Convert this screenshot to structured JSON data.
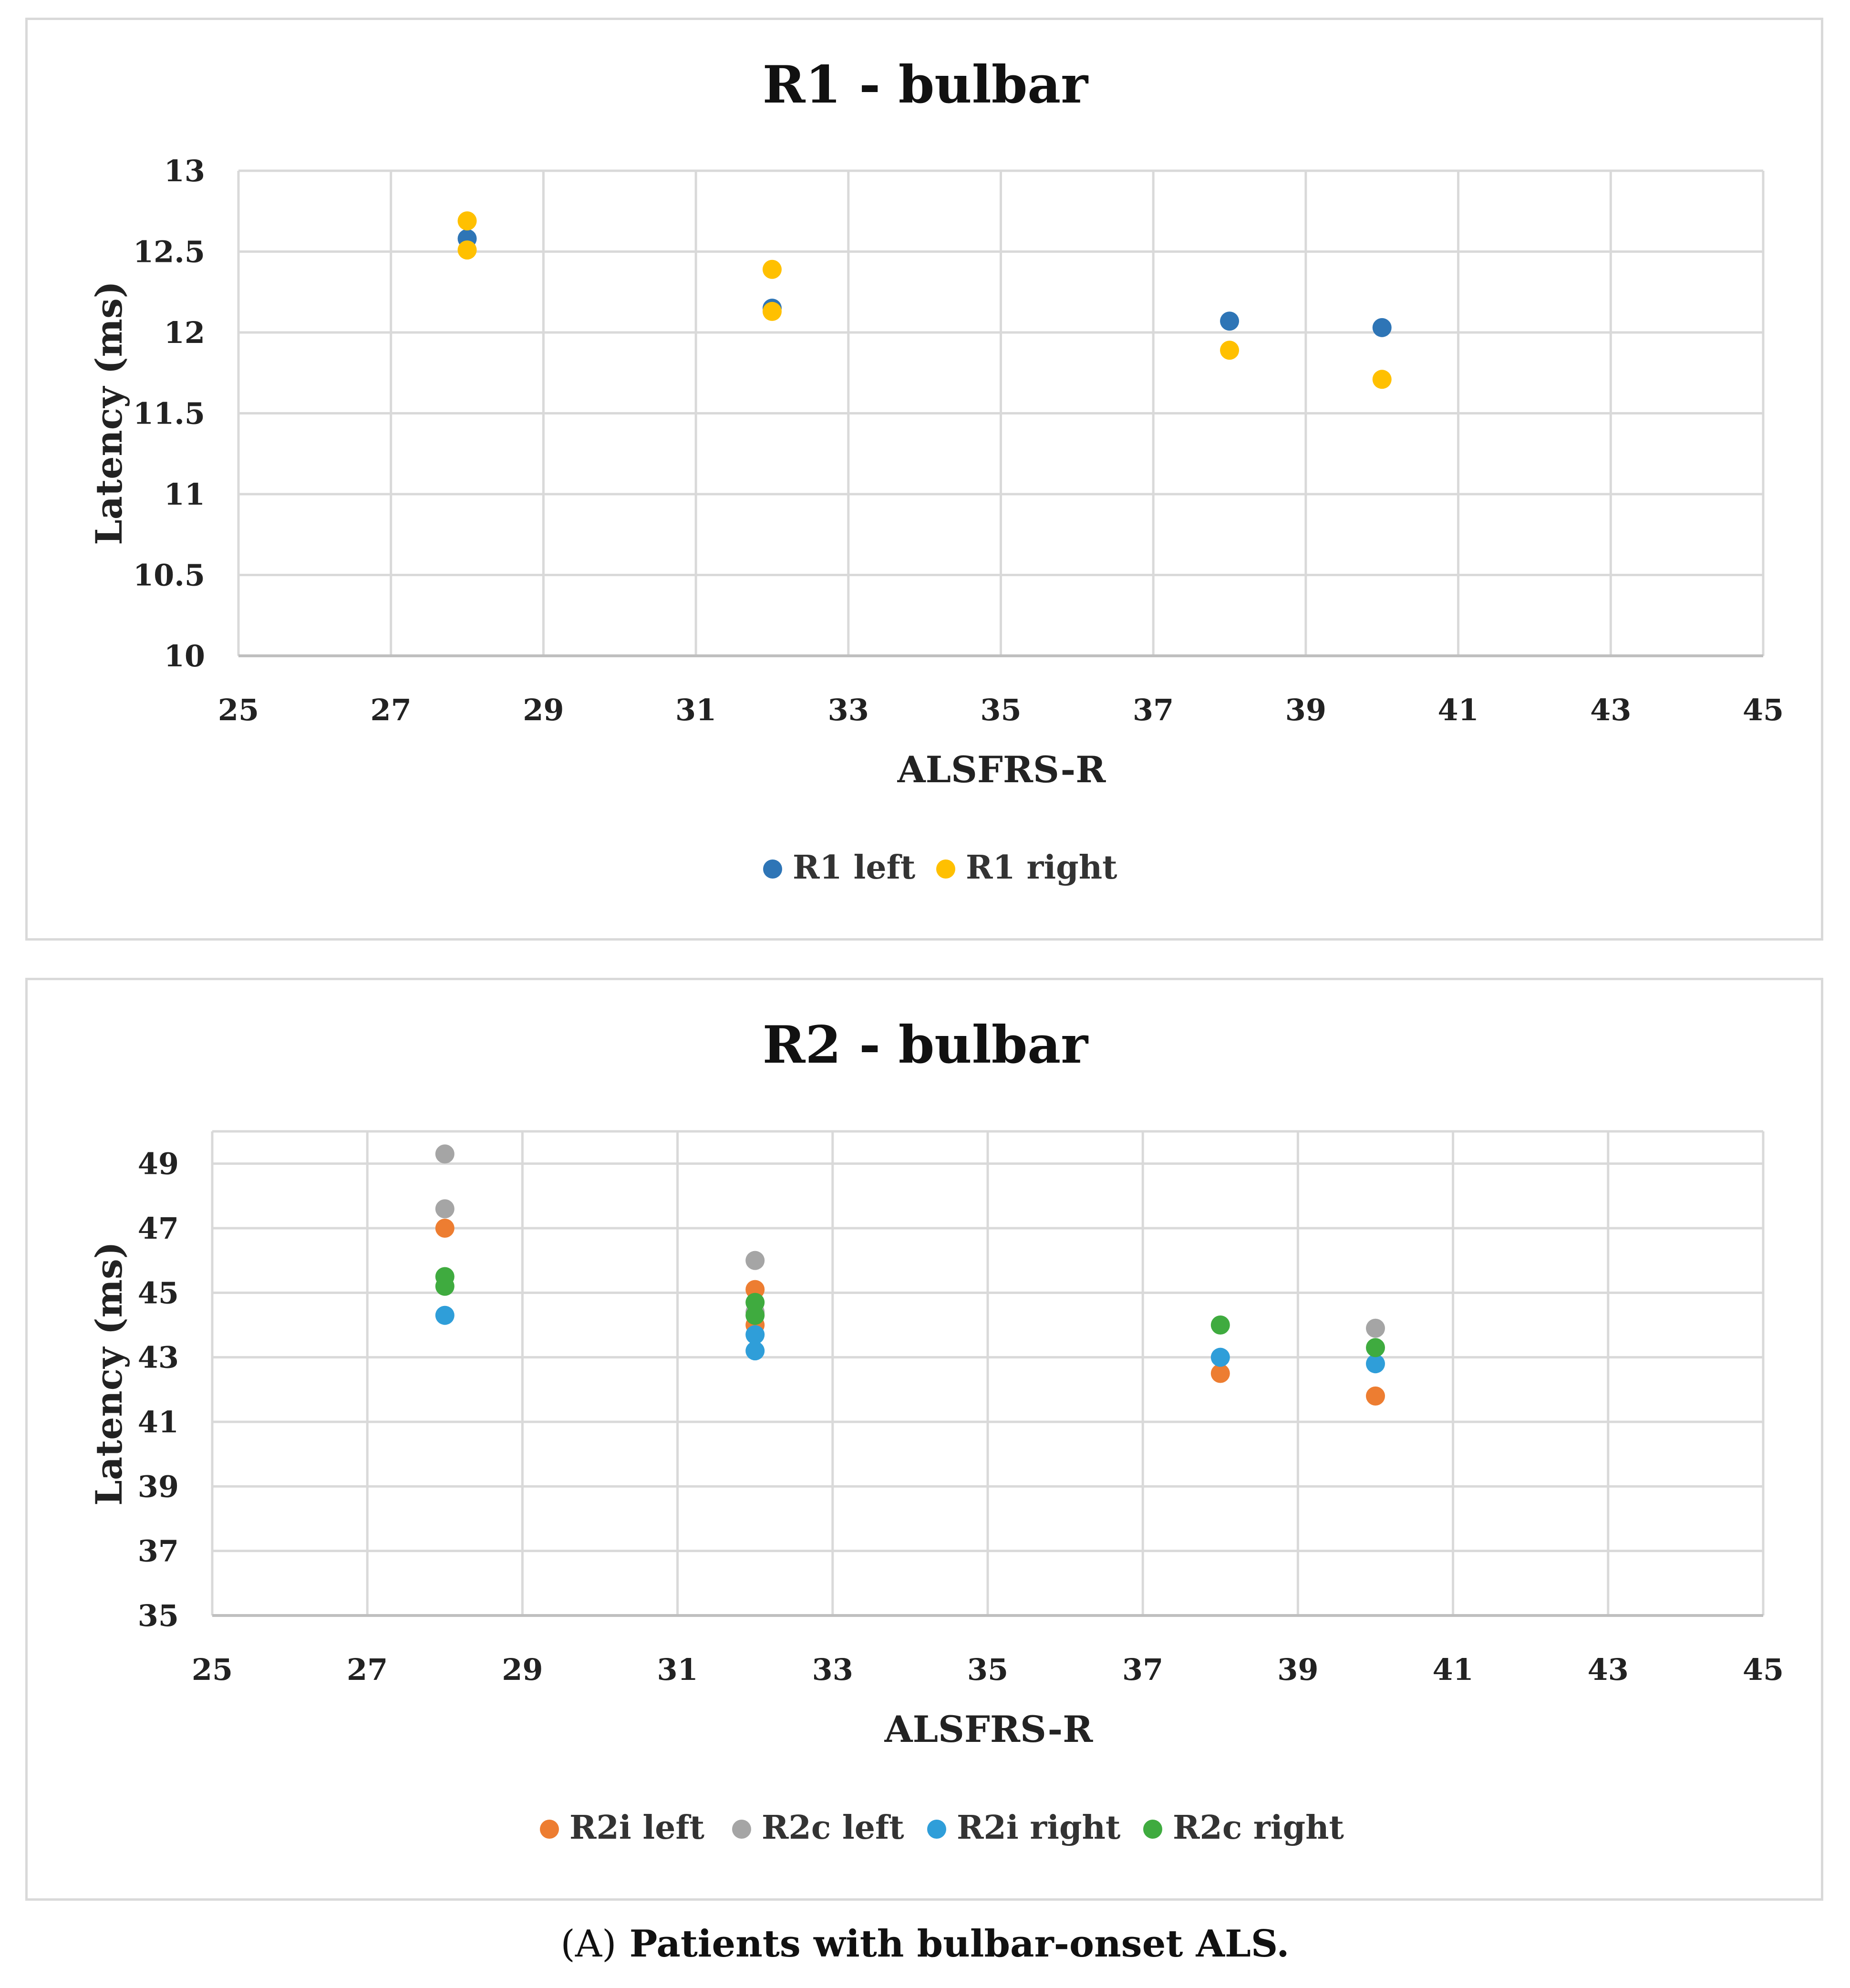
{
  "chart_data": [
    {
      "type": "scatter",
      "title": "R1 - bulbar",
      "xlabel": "ALSFRS-R",
      "ylabel": "Latency (ms)",
      "xlim": [
        25,
        45
      ],
      "ylim": [
        10,
        13
      ],
      "x_ticks": [
        "25",
        "27",
        "29",
        "31",
        "33",
        "35",
        "37",
        "39",
        "41",
        "43",
        "45"
      ],
      "y_ticks": [
        "10",
        "10.5",
        "11",
        "11.5",
        "12",
        "12.5",
        "13"
      ],
      "grid": true,
      "legend_position": "bottom",
      "series": [
        {
          "name": "R1 left",
          "color": "#2e75b6",
          "points": [
            [
              28,
              12.58
            ],
            [
              32,
              12.15
            ],
            [
              38,
              12.07
            ],
            [
              40,
              12.03
            ]
          ]
        },
        {
          "name": "R1 right",
          "color": "#ffc000",
          "points": [
            [
              28,
              12.69
            ],
            [
              28,
              12.51
            ],
            [
              32,
              12.39
            ],
            [
              32,
              12.13
            ],
            [
              38,
              11.89
            ],
            [
              40,
              11.71
            ]
          ]
        }
      ]
    },
    {
      "type": "scatter",
      "title": "R2 - bulbar",
      "xlabel": "ALSFRS-R",
      "ylabel": "Latency (ms)",
      "xlim": [
        25,
        45
      ],
      "ylim": [
        35,
        50
      ],
      "x_ticks": [
        "25",
        "27",
        "29",
        "31",
        "33",
        "35",
        "37",
        "39",
        "41",
        "43",
        "45"
      ],
      "y_ticks": [
        "35",
        "37",
        "39",
        "41",
        "43",
        "45",
        "47",
        "49"
      ],
      "grid": true,
      "legend_position": "bottom",
      "series": [
        {
          "name": "R2i left",
          "color": "#ed7d31",
          "points": [
            [
              28,
              47.0
            ],
            [
              32,
              45.1
            ],
            [
              32,
              44.0
            ],
            [
              38,
              42.5
            ],
            [
              40,
              41.8
            ]
          ]
        },
        {
          "name": "R2c left",
          "color": "#a5a5a5",
          "points": [
            [
              28,
              49.3
            ],
            [
              28,
              47.6
            ],
            [
              32,
              46.0
            ],
            [
              32,
              44.4
            ],
            [
              40,
              43.9
            ]
          ]
        },
        {
          "name": "R2i right",
          "color": "#2f9ed9",
          "points": [
            [
              28,
              44.3
            ],
            [
              32,
              43.7
            ],
            [
              32,
              43.2
            ],
            [
              38,
              43.0
            ],
            [
              40,
              42.8
            ]
          ]
        },
        {
          "name": "R2c right",
          "color": "#3fab3f",
          "points": [
            [
              28,
              45.5
            ],
            [
              28,
              45.2
            ],
            [
              32,
              44.7
            ],
            [
              32,
              44.3
            ],
            [
              38,
              44.0
            ],
            [
              40,
              43.3
            ]
          ]
        }
      ]
    }
  ],
  "caption": {
    "label": "(A)",
    "text": "Patients with bulbar-onset ALS."
  }
}
